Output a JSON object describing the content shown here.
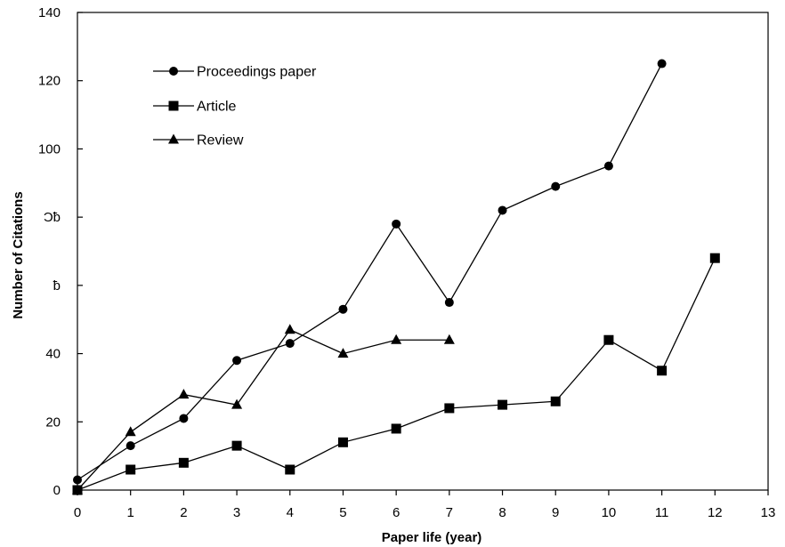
{
  "chart_data": {
    "type": "line",
    "title": "",
    "xlabel": "Paper life (year)",
    "ylabel": "Number of Citations",
    "xlim": [
      0,
      13
    ],
    "ylim": [
      0,
      140
    ],
    "x_ticks": [
      "0",
      "1",
      "2",
      "3",
      "4",
      "5",
      "6",
      "7",
      "8",
      "9",
      "10",
      "11",
      "12",
      "13"
    ],
    "y_ticks": [
      "0",
      "20",
      "40",
      "ƀ",
      "Ɔƀ",
      "100",
      "120",
      "140"
    ],
    "y_tick_values": [
      0,
      20,
      40,
      60,
      80,
      100,
      120,
      140
    ],
    "grid": false,
    "legend_position": "top-left",
    "series": [
      {
        "name": "Proceedings paper",
        "marker": "circle",
        "x": [
          0,
          1,
          2,
          3,
          4,
          5,
          6,
          7,
          8,
          9,
          10,
          11
        ],
        "values": [
          3,
          13,
          21,
          38,
          43,
          53,
          78,
          55,
          82,
          89,
          95,
          125
        ]
      },
      {
        "name": "Article",
        "marker": "square",
        "x": [
          0,
          1,
          2,
          3,
          4,
          5,
          6,
          7,
          8,
          9,
          10,
          11,
          12
        ],
        "values": [
          0,
          6,
          8,
          13,
          6,
          14,
          18,
          24,
          25,
          26,
          44,
          35,
          68
        ]
      },
      {
        "name": "Review",
        "marker": "triangle",
        "x": [
          0,
          1,
          2,
          3,
          4,
          5,
          6,
          7
        ],
        "values": [
          0,
          17,
          28,
          25,
          47,
          40,
          44,
          44
        ]
      }
    ],
    "colors": {
      "line": "#000000",
      "marker": "#000000",
      "background": "#ffffff"
    }
  }
}
